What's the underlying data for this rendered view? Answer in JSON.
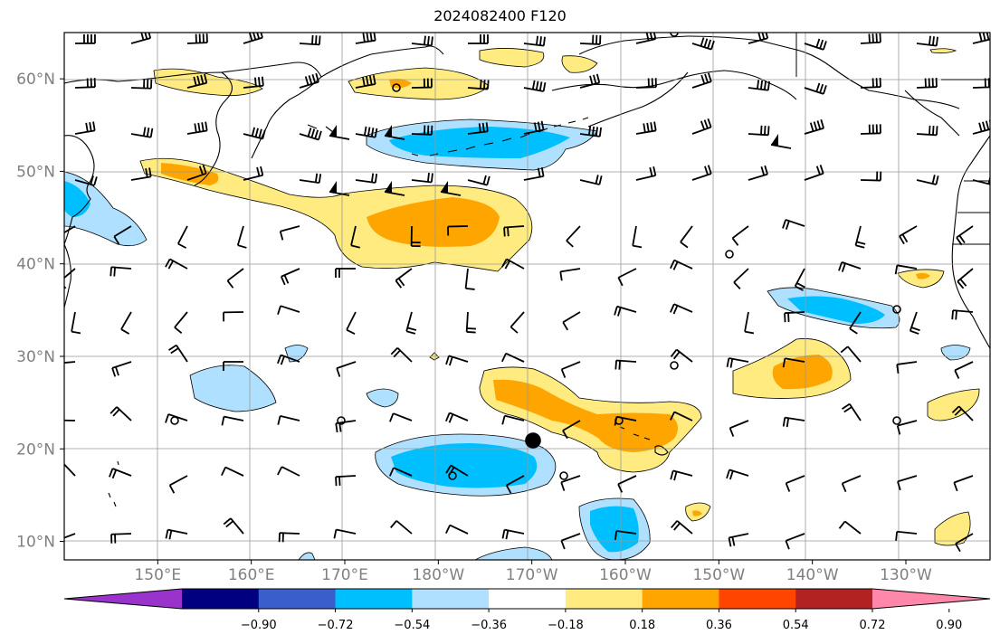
{
  "title": "2024082400 F120",
  "map": {
    "lat_labels": [
      "60°N",
      "50°N",
      "40°N",
      "30°N",
      "20°N",
      "10°N"
    ],
    "lat_values": [
      60,
      50,
      40,
      30,
      20,
      10
    ],
    "lon_labels": [
      "150°E",
      "160°E",
      "170°E",
      "180°W",
      "170°W",
      "160°W",
      "150°W",
      "140°W",
      "130°W"
    ],
    "lon_values": [
      150,
      160,
      170,
      180,
      190,
      200,
      210,
      220,
      230
    ],
    "extent": {
      "lon_min": 140,
      "lon_max": 239,
      "lat_min": 8,
      "lat_max": 65
    }
  },
  "colorbar": {
    "colors": [
      "#9933cc",
      "#000080",
      "#3a5fcd",
      "#00bfff",
      "#b0e0ff",
      "#ffffff",
      "#ffeb80",
      "#ffa500",
      "#ff4500",
      "#b22222",
      "#ff88aa"
    ],
    "tick_labels": [
      "−0.90",
      "−0.72",
      "−0.54",
      "−0.36",
      "−0.18",
      "0.18",
      "0.36",
      "0.54",
      "0.72",
      "0.90"
    ]
  }
}
